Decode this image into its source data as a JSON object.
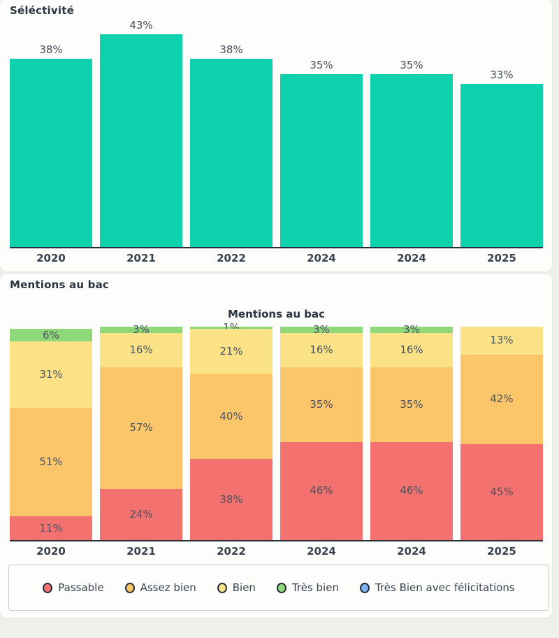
{
  "sections": {
    "selectivity_title": "Séléctivité",
    "mentions_title": "Mentions au bac"
  },
  "colors": {
    "teal": "#0ed1ae",
    "passable_red": "#f3716e",
    "assez_bien_orange": "#fbc56a",
    "bien_yellow": "#fce287",
    "tres_bien_green": "#8fd87a",
    "felicitations_blue": "#80b4f0",
    "axis": "#262e3a",
    "card_background": "#fdfdfb",
    "page_background": "#efefec"
  },
  "chart_data": [
    {
      "type": "bar",
      "title": "Séléctivité",
      "categories": [
        "2020",
        "2021",
        "2022",
        "2024",
        "2024",
        "2025"
      ],
      "values": [
        38,
        43,
        38,
        35,
        35,
        33
      ],
      "value_labels": [
        "38%",
        "43%",
        "38%",
        "35%",
        "35%",
        "33%"
      ],
      "unit": "%",
      "bar_color": "#0ed1ae",
      "ylim": [
        0,
        48
      ],
      "grid": false,
      "legend_position": "none"
    },
    {
      "type": "bar",
      "subtype": "stacked",
      "title": "Mentions au bac",
      "categories": [
        "2020",
        "2021",
        "2022",
        "2024",
        "2024",
        "2025"
      ],
      "series": [
        {
          "name": "Passable",
          "color": "#f3716e",
          "values": [
            11,
            24,
            38,
            46,
            46,
            45
          ]
        },
        {
          "name": "Assez bien",
          "color": "#fbc56a",
          "values": [
            51,
            57,
            40,
            35,
            35,
            42
          ]
        },
        {
          "name": "Bien",
          "color": "#fce287",
          "values": [
            31,
            16,
            21,
            16,
            16,
            13
          ]
        },
        {
          "name": "Très bien",
          "color": "#8fd87a",
          "values": [
            6,
            3,
            1,
            3,
            3,
            0
          ]
        },
        {
          "name": "Très Bien avec félicitations",
          "color": "#80b4f0",
          "values": [
            0,
            0,
            0,
            0,
            0,
            0
          ]
        }
      ],
      "unit": "%",
      "ylim": [
        0,
        100
      ],
      "grid": false,
      "legend_position": "bottom"
    }
  ]
}
